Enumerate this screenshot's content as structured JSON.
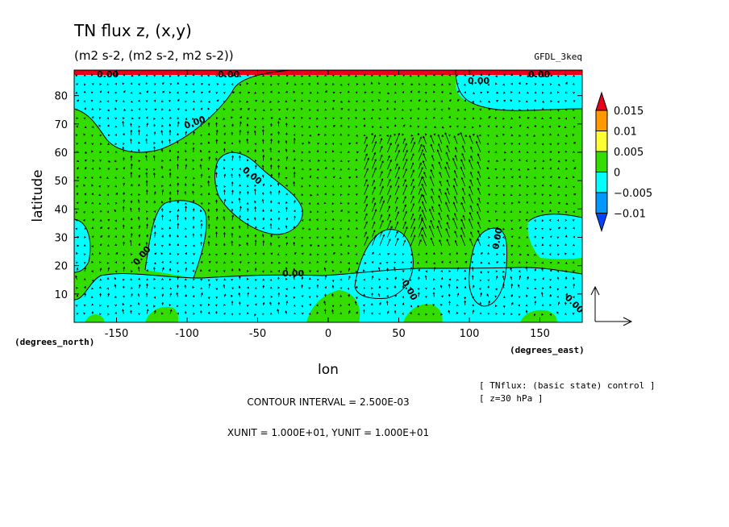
{
  "chart_data": {
    "type": "heatmap",
    "title": "TN flux z, (x,y)",
    "subtitle": "(m2 s-2, (m2 s-2, m2 s-2))",
    "model_label": "GFDL_3keq",
    "xlabel": "lon",
    "ylabel": "latitude",
    "x_unit_label": "(degrees_east)",
    "y_unit_label": "(degrees_north)",
    "x_ticks": [
      "-150",
      "-100",
      "-50",
      "0",
      "50",
      "100",
      "150"
    ],
    "x_tick_values": [
      -150,
      -100,
      -50,
      0,
      50,
      100,
      150
    ],
    "y_ticks": [
      "10",
      "20",
      "30",
      "40",
      "50",
      "60",
      "70",
      "80"
    ],
    "y_tick_values": [
      10,
      20,
      30,
      40,
      50,
      60,
      70,
      80
    ],
    "xlim": [
      -180,
      180
    ],
    "ylim": [
      0,
      89
    ],
    "colorbar": {
      "labels": [
        "0.015",
        "0.01",
        "0.005",
        "0",
        "−0.005",
        "−0.01"
      ],
      "colors": [
        "#e8001a",
        "#ff9900",
        "#ffff33",
        "#33dd00",
        "#00ffff",
        "#0099ff",
        "#0044ff"
      ]
    },
    "contour_labels": [
      "0.00",
      "0.00",
      "0.00",
      "0.00",
      "0.00",
      "0.00",
      "0.00",
      "0.00",
      "0.00",
      "0.00",
      "0.00"
    ],
    "contour_interval": "CONTOUR INTERVAL = 2.500E-03",
    "vector_units": "XUNIT = 1.000E+01, YUNIT = 1.000E+01",
    "dataset_label": "[ TNflux: (basic state) control ]",
    "level_label": "[ z=30 hPa ]"
  },
  "colors": {
    "positive": "#33dd00",
    "negative": "#00ffff",
    "strong_positive": "#e8001a"
  }
}
